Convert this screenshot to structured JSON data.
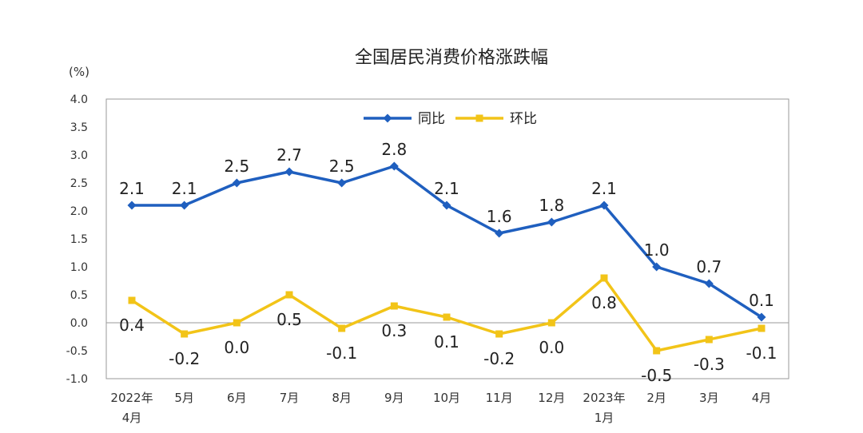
{
  "chart_data": {
    "type": "line",
    "title": "全国居民消费价格涨跌幅",
    "unit_label": "(%)",
    "categories": [
      [
        "2022年",
        "4月"
      ],
      [
        "5月"
      ],
      [
        "6月"
      ],
      [
        "7月"
      ],
      [
        "8月"
      ],
      [
        "9月"
      ],
      [
        "10月"
      ],
      [
        "11月"
      ],
      [
        "12月"
      ],
      [
        "2023年",
        "1月"
      ],
      [
        "2月"
      ],
      [
        "3月"
      ],
      [
        "4月"
      ]
    ],
    "ylim": [
      -1.0,
      4.0
    ],
    "yticks": [
      "-1.0",
      "-0.5",
      "0.0",
      "0.5",
      "1.0",
      "1.5",
      "2.0",
      "2.5",
      "3.0",
      "3.5",
      "4.0"
    ],
    "legend_position": "top-center",
    "grid": false,
    "series": [
      {
        "name": "同比",
        "color": "#1f5fbf",
        "values": [
          2.1,
          2.1,
          2.5,
          2.7,
          2.5,
          2.8,
          2.1,
          1.6,
          1.8,
          2.1,
          1.0,
          0.7,
          0.1
        ],
        "labels": [
          "2.1",
          "2.1",
          "2.5",
          "2.7",
          "2.5",
          "2.8",
          "2.1",
          "1.6",
          "1.8",
          "2.1",
          "1.0",
          "0.7",
          "0.1"
        ],
        "label_side": [
          "above",
          "above",
          "above",
          "above",
          "above",
          "above",
          "above",
          "above",
          "above",
          "above",
          "above",
          "above",
          "above"
        ]
      },
      {
        "name": "环比",
        "color": "#f2c418",
        "values": [
          0.4,
          -0.2,
          0.0,
          0.5,
          -0.1,
          0.3,
          0.1,
          -0.2,
          0.0,
          0.8,
          -0.5,
          -0.3,
          -0.1
        ],
        "labels": [
          "0.4",
          "-0.2",
          "0.0",
          "0.5",
          "-0.1",
          "0.3",
          "0.1",
          "-0.2",
          "0.0",
          "0.8",
          "-0.5",
          "-0.3",
          "-0.1"
        ],
        "label_side": [
          "below",
          "below",
          "below",
          "below",
          "below",
          "below",
          "below",
          "below",
          "below",
          "below",
          "below",
          "below",
          "below"
        ]
      }
    ]
  }
}
